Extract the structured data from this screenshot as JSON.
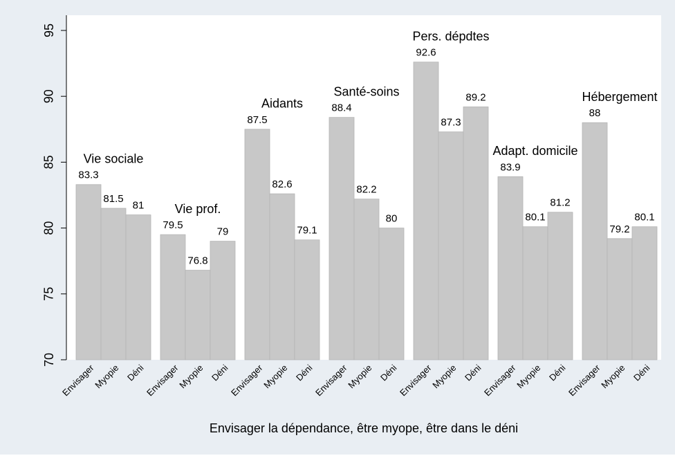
{
  "chart_data": {
    "type": "bar",
    "xlabel": "Envisager la dépendance, être myope, être dans le déni",
    "categories": [
      "Envisager",
      "Myopie",
      "Déni"
    ],
    "groups": [
      {
        "name": "Vie sociale",
        "values": [
          83.3,
          81.5,
          81
        ]
      },
      {
        "name": "Vie prof.",
        "values": [
          79.5,
          76.8,
          79
        ]
      },
      {
        "name": "Aidants",
        "values": [
          87.5,
          82.6,
          79.1
        ]
      },
      {
        "name": "Santé-soins",
        "values": [
          88.4,
          82.2,
          80
        ]
      },
      {
        "name": "Pers. dépdtes",
        "values": [
          92.6,
          87.3,
          89.2
        ]
      },
      {
        "name": "Adapt. domicile",
        "values": [
          83.9,
          80.1,
          81.2
        ]
      },
      {
        "name": "Hébergement",
        "values": [
          88,
          79.2,
          80.1
        ]
      }
    ],
    "color": "#c8c8c8",
    "ylim": [
      70,
      95
    ],
    "yticks": [
      70,
      75,
      80,
      85,
      90,
      95
    ]
  }
}
